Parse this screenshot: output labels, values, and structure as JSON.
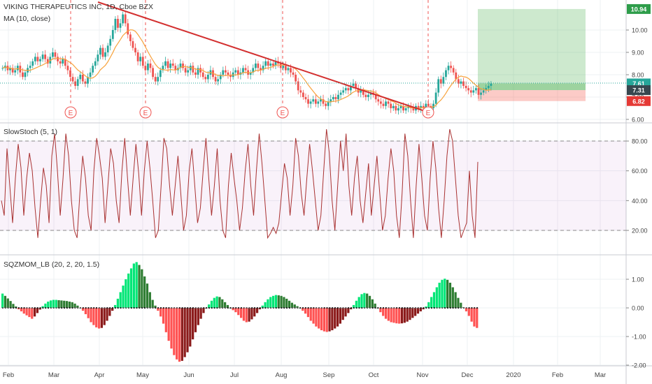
{
  "header": {
    "symbol_line": "VIKING THERAPEUTICS INC, 1D, Cboe BZX",
    "ma_label": "MA (10, close)"
  },
  "stoch": {
    "label": "SlowStoch (5, 1)"
  },
  "sqz": {
    "label": "SQZMOM_LB (20, 2, 20, 1.5)"
  },
  "colors": {
    "candle_up": "#26a69a",
    "candle_down": "#ef5350",
    "ma": "#f7a23b",
    "trend": "#d32f2f",
    "stoch_line": "#a93232",
    "stoch_band": "#9c27b0",
    "tp_zone": "#4caf50",
    "sl_zone": "#f44336",
    "mom_lime": "#00e676",
    "mom_green": "#2e7d32",
    "mom_red": "#ff5252",
    "mom_maroon": "#8b1a1a"
  },
  "chart_data": [
    {
      "type": "candlestick",
      "x": [
        "Feb",
        "Mar",
        "Apr",
        "May",
        "Jun",
        "Jul",
        "Aug",
        "Sep",
        "Oct",
        "Nov",
        "Dec",
        "2020",
        "Feb",
        "Mar"
      ],
      "ylim": [
        6.0,
        11.0
      ],
      "y_ticks": [
        "6.00",
        "7.00",
        "8.00",
        "9.00",
        "10.00"
      ],
      "price_tags": {
        "top": "10.94",
        "current": "7.61",
        "ma": "7.31",
        "stop": "6.82"
      },
      "earnings_markers": [
        {
          "date": "Feb 28",
          "label": "E"
        },
        {
          "date": "Apr 29",
          "label": "E"
        },
        {
          "date": "Jul 31",
          "label": "E"
        },
        {
          "date": "Oct 31",
          "label": "E"
        }
      ],
      "closes": [
        8.3,
        8.4,
        8.2,
        8.3,
        8.1,
        8.2,
        8.4,
        8.1,
        7.9,
        8.1,
        8.3,
        8.4,
        8.6,
        8.8,
        8.6,
        8.7,
        8.9,
        8.7,
        8.5,
        8.8,
        9.0,
        8.8,
        8.6,
        8.5,
        8.7,
        8.4,
        8.2,
        7.9,
        7.7,
        7.5,
        7.8,
        8.0,
        7.7,
        7.6,
        7.9,
        8.1,
        8.4,
        8.6,
        8.9,
        9.2,
        8.8,
        9.0,
        9.3,
        9.6,
        10.0,
        10.5,
        10.1,
        10.3,
        10.7,
        10.3,
        9.8,
        9.5,
        9.2,
        9.0,
        8.6,
        8.8,
        8.4,
        8.2,
        8.5,
        8.3,
        7.9,
        7.7,
        7.9,
        8.2,
        8.4,
        8.6,
        8.3,
        8.5,
        8.4,
        8.2,
        8.3,
        8.5,
        8.3,
        8.1,
        8.2,
        8.4,
        8.1,
        8.0,
        8.3,
        8.1,
        7.9,
        7.8,
        8.0,
        8.2,
        7.9,
        7.7,
        7.8,
        8.0,
        8.2,
        8.1,
        8.0,
        7.9,
        8.1,
        8.2,
        8.0,
        8.1,
        8.3,
        8.2,
        8.0,
        8.1,
        8.3,
        8.5,
        8.3,
        8.2,
        8.4,
        8.6,
        8.4,
        8.5,
        8.4,
        8.6,
        8.5,
        8.3,
        8.4,
        8.2,
        8.3,
        8.1,
        8.0,
        7.7,
        7.3,
        7.2,
        7.0,
        6.9,
        6.7,
        6.8,
        6.9,
        6.7,
        6.8,
        6.9,
        6.7,
        6.6,
        6.8,
        6.9,
        7.0,
        6.9,
        7.1,
        7.2,
        7.3,
        7.4,
        7.3,
        7.5,
        7.6,
        7.4,
        7.2,
        7.3,
        7.1,
        7.0,
        7.1,
        7.2,
        7.1,
        6.9,
        6.8,
        6.7,
        6.6,
        6.8,
        6.7,
        6.5,
        6.6,
        6.4,
        6.5,
        6.6,
        6.4,
        6.5,
        6.6,
        6.5,
        6.4,
        6.6,
        6.5,
        6.6,
        6.5,
        6.7,
        6.6,
        6.5,
        6.7,
        7.2,
        7.8,
        7.6,
        7.9,
        8.2,
        8.4,
        8.3,
        8.1,
        7.8,
        7.6,
        7.7,
        7.5,
        7.4,
        7.3,
        7.2,
        7.3,
        7.4,
        7.1,
        7.2,
        7.3,
        7.4,
        7.5,
        7.6
      ]
    },
    {
      "type": "line",
      "title": "SlowStoch (5, 1)",
      "ylim": [
        0,
        100
      ],
      "y_ticks": [
        "20.00",
        "40.00",
        "60.00",
        "80.00"
      ],
      "band": [
        20,
        80
      ],
      "values": [
        40,
        30,
        75,
        50,
        25,
        55,
        78,
        62,
        30,
        55,
        72,
        60,
        35,
        15,
        40,
        62,
        50,
        25,
        70,
        85,
        60,
        30,
        55,
        85,
        70,
        40,
        20,
        15,
        45,
        70,
        55,
        30,
        20,
        60,
        82,
        70,
        55,
        25,
        50,
        75,
        65,
        40,
        25,
        60,
        82,
        55,
        30,
        55,
        78,
        58,
        30,
        60,
        80,
        62,
        40,
        15,
        20,
        50,
        82,
        75,
        50,
        30,
        50,
        70,
        45,
        20,
        30,
        60,
        75,
        50,
        25,
        35,
        60,
        82,
        55,
        30,
        50,
        75,
        40,
        20,
        15,
        50,
        72,
        55,
        40,
        20,
        35,
        60,
        78,
        50,
        30,
        60,
        85,
        65,
        40,
        15,
        18,
        22,
        18,
        25,
        45,
        65,
        55,
        30,
        50,
        82,
        70,
        45,
        30,
        55,
        78,
        60,
        40,
        20,
        30,
        60,
        88,
        72,
        40,
        20,
        50,
        80,
        60,
        85,
        50,
        30,
        55,
        70,
        40,
        25,
        45,
        65,
        30,
        50,
        70,
        45,
        20,
        30,
        55,
        75,
        60,
        30,
        15,
        45,
        85,
        70,
        40,
        15,
        50,
        78,
        55,
        30,
        20,
        55,
        80,
        62,
        35,
        15,
        40,
        70,
        88,
        80,
        55,
        30,
        15,
        20,
        25,
        60,
        30,
        15,
        66
      ]
    },
    {
      "type": "bar",
      "title": "SQZMOM_LB (20, 2, 20, 1.5)",
      "ylim": [
        -2.0,
        1.6
      ],
      "y_ticks": [
        "-2.00",
        "-1.00",
        "0.00",
        "1.00"
      ],
      "values": [
        0.5,
        0.42,
        0.33,
        0.24,
        0.14,
        0.05,
        -0.05,
        -0.12,
        -0.2,
        -0.26,
        -0.32,
        -0.38,
        -0.3,
        -0.18,
        -0.06,
        0.06,
        0.15,
        0.22,
        0.26,
        0.28,
        0.28,
        0.27,
        0.26,
        0.25,
        0.24,
        0.22,
        0.2,
        0.15,
        0.08,
        0.0,
        -0.1,
        -0.22,
        -0.36,
        -0.5,
        -0.6,
        -0.68,
        -0.72,
        -0.7,
        -0.6,
        -0.45,
        -0.28,
        -0.1,
        0.1,
        0.32,
        0.55,
        0.78,
        1.0,
        1.2,
        1.38,
        1.55,
        1.6,
        1.5,
        1.35,
        1.1,
        0.85,
        0.55,
        0.28,
        0.08,
        -0.1,
        -0.3,
        -0.55,
        -0.85,
        -1.15,
        -1.42,
        -1.65,
        -1.8,
        -1.88,
        -1.85,
        -1.72,
        -1.55,
        -1.35,
        -1.1,
        -0.85,
        -0.6,
        -0.38,
        -0.18,
        -0.02,
        0.12,
        0.25,
        0.35,
        0.4,
        0.38,
        0.3,
        0.2,
        0.1,
        0.0,
        -0.08,
        -0.15,
        -0.25,
        -0.35,
        -0.45,
        -0.5,
        -0.48,
        -0.4,
        -0.3,
        -0.18,
        -0.05,
        0.08,
        0.2,
        0.3,
        0.38,
        0.42,
        0.45,
        0.44,
        0.42,
        0.38,
        0.32,
        0.25,
        0.18,
        0.12,
        0.06,
        0.0,
        -0.1,
        -0.2,
        -0.32,
        -0.45,
        -0.55,
        -0.65,
        -0.72,
        -0.78,
        -0.82,
        -0.84,
        -0.82,
        -0.78,
        -0.72,
        -0.65,
        -0.55,
        -0.42,
        -0.3,
        -0.18,
        -0.05,
        0.1,
        0.25,
        0.38,
        0.48,
        0.52,
        0.5,
        0.42,
        0.3,
        0.15,
        0.0,
        -0.15,
        -0.28,
        -0.38,
        -0.45,
        -0.5,
        -0.52,
        -0.54,
        -0.55,
        -0.54,
        -0.52,
        -0.48,
        -0.42,
        -0.35,
        -0.28,
        -0.2,
        -0.12,
        -0.05,
        0.05,
        0.2,
        0.38,
        0.55,
        0.72,
        0.88,
        0.98,
        1.02,
        0.98,
        0.88,
        0.72,
        0.55,
        0.35,
        0.18,
        0.02,
        -0.12,
        -0.28,
        -0.48,
        -0.65,
        -0.7
      ]
    }
  ]
}
